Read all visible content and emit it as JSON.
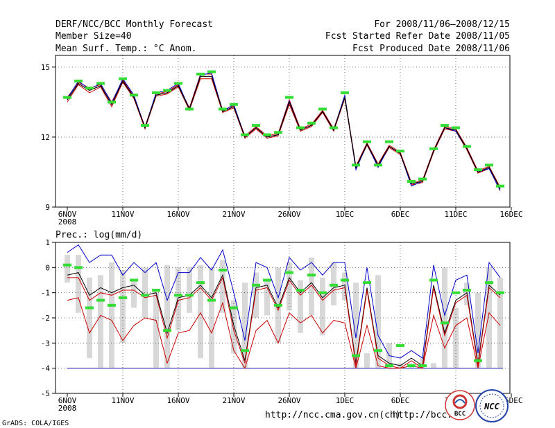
{
  "header": {
    "title_left": "DERF/NCC/BCC Monthly Forecast",
    "member_size": "Member Size=40",
    "variable": "Mean Surf. Temp.: °C Anom.",
    "period": "For 2008/11/06—2008/12/15",
    "started": "Fcst Started Refer Date 2008/11/05",
    "produced": "Fcst Produced Date 2008/11/06"
  },
  "footer": {
    "credit": "GrADS: COLA/IGES",
    "url1": "http://ncc.cma.gov.cn(ch)",
    "url2": "http://bcc.",
    "logo1": "BCC",
    "logo2": "NCC"
  },
  "x_ticks": [
    {
      "day": 0,
      "label": "6NOV",
      "sub": "2008"
    },
    {
      "day": 5,
      "label": "11NOV"
    },
    {
      "day": 10,
      "label": "16NOV"
    },
    {
      "day": 15,
      "label": "21NOV"
    },
    {
      "day": 20,
      "label": "26NOV"
    },
    {
      "day": 25,
      "label": "1DEC"
    },
    {
      "day": 30,
      "label": "6DEC"
    },
    {
      "day": 35,
      "label": "11DEC"
    },
    {
      "day": 40,
      "label": "16DEC"
    }
  ],
  "colors": {
    "mean": "#000000",
    "members": "#cc0000",
    "ensemble": "#0000cc",
    "obs": "#33dd33",
    "spread": "#d8d8d8"
  },
  "chart_data": [
    {
      "type": "line",
      "title": "Mean Surf. Temp.: °C Anom.",
      "xlabel": "",
      "ylabel": "",
      "x_range": [
        0,
        40
      ],
      "ylim": [
        9,
        15.5
      ],
      "y_ticks": [
        9,
        12,
        15
      ],
      "x": [
        0,
        1,
        2,
        3,
        4,
        5,
        6,
        7,
        8,
        9,
        10,
        11,
        12,
        13,
        14,
        15,
        16,
        17,
        18,
        19,
        20,
        21,
        22,
        23,
        24,
        25,
        26,
        27,
        28,
        29,
        30,
        31,
        32,
        33,
        34,
        35,
        36,
        37,
        38,
        39
      ],
      "mean": [
        13.6,
        14.3,
        14.0,
        14.2,
        13.4,
        14.4,
        13.7,
        12.4,
        13.8,
        13.9,
        14.2,
        13.2,
        14.6,
        14.6,
        13.1,
        13.3,
        12.0,
        12.4,
        12.0,
        12.1,
        13.5,
        12.3,
        12.5,
        13.1,
        12.3,
        13.7,
        10.7,
        11.7,
        10.8,
        11.6,
        11.3,
        10.0,
        10.1,
        11.4,
        12.4,
        12.3,
        11.5,
        10.5,
        10.7,
        9.8
      ],
      "series": [
        {
          "name": "upper red",
          "values": [
            13.7,
            14.35,
            14.1,
            14.25,
            13.5,
            14.45,
            13.75,
            12.45,
            13.85,
            13.95,
            14.25,
            13.25,
            14.7,
            14.7,
            13.15,
            13.35,
            12.05,
            12.45,
            12.05,
            12.15,
            13.6,
            12.35,
            12.55,
            13.15,
            12.35,
            13.75,
            10.75,
            11.75,
            10.85,
            11.65,
            11.35,
            10.05,
            10.15,
            11.45,
            12.45,
            12.35,
            11.55,
            10.55,
            10.75,
            9.85
          ]
        },
        {
          "name": "lower red",
          "values": [
            13.5,
            14.25,
            13.9,
            14.15,
            13.3,
            14.35,
            13.65,
            12.35,
            13.75,
            13.85,
            14.15,
            13.15,
            14.5,
            14.5,
            13.05,
            13.25,
            11.95,
            12.35,
            11.95,
            12.05,
            13.4,
            12.25,
            12.45,
            13.05,
            12.25,
            13.65,
            10.65,
            11.65,
            10.75,
            11.55,
            11.25,
            9.95,
            10.05,
            11.35,
            12.35,
            12.25,
            11.45,
            10.45,
            10.65,
            9.75
          ]
        },
        {
          "name": "blue",
          "values": [
            13.65,
            14.4,
            14.05,
            14.3,
            13.45,
            14.5,
            13.8,
            12.4,
            13.9,
            14.0,
            14.3,
            13.2,
            14.65,
            14.75,
            13.1,
            13.4,
            12.0,
            12.4,
            12.0,
            12.1,
            13.55,
            12.3,
            12.5,
            13.1,
            12.3,
            13.8,
            10.6,
            11.7,
            10.7,
            11.6,
            11.3,
            9.9,
            10.1,
            11.4,
            12.4,
            12.25,
            11.5,
            10.5,
            10.65,
            9.7
          ]
        }
      ],
      "obs_markers": [
        13.7,
        14.4,
        14.1,
        14.3,
        13.5,
        14.5,
        13.8,
        12.5,
        13.9,
        14.0,
        14.3,
        13.2,
        14.7,
        14.8,
        13.2,
        13.4,
        12.1,
        12.5,
        12.1,
        12.2,
        13.7,
        12.4,
        12.6,
        13.2,
        12.4,
        13.9,
        10.8,
        11.8,
        10.8,
        11.8,
        11.4,
        10.1,
        10.2,
        11.5,
        12.5,
        12.4,
        11.6,
        10.6,
        10.8,
        9.9
      ]
    },
    {
      "type": "line",
      "title": "Prec.: log(mm/d)",
      "xlabel": "",
      "ylabel": "",
      "x_range": [
        0,
        40
      ],
      "ylim": [
        -5,
        1
      ],
      "y_ticks": [
        -5,
        -4,
        -3,
        -2,
        -1,
        0,
        1
      ],
      "x": [
        0,
        1,
        2,
        3,
        4,
        5,
        6,
        7,
        8,
        9,
        10,
        11,
        12,
        13,
        14,
        15,
        16,
        17,
        18,
        19,
        20,
        21,
        22,
        23,
        24,
        25,
        26,
        27,
        28,
        29,
        30,
        31,
        32,
        33,
        34,
        35,
        36,
        37,
        38,
        39
      ],
      "spread_low": [
        -0.6,
        -1.8,
        -3.6,
        -4.0,
        -4.0,
        -3.0,
        -1.6,
        -2.0,
        -4.0,
        -4.0,
        -2.5,
        -1.8,
        -3.6,
        -4.0,
        -1.8,
        -3.4,
        -4.0,
        -2.0,
        -1.9,
        -3.0,
        -1.7,
        -2.6,
        -1.9,
        -2.7,
        -1.5,
        -1.3,
        -4.0,
        -4.0,
        -4.0,
        -4.0,
        -4.0,
        -4.0,
        -4.0,
        -4.0,
        -4.0,
        -4.0,
        -1.5,
        -4.0,
        -4.0,
        -4.0
      ],
      "spread_high": [
        0.5,
        0.5,
        -0.4,
        -0.3,
        0.2,
        -0.1,
        -0.5,
        0.0,
        -0.9,
        0.1,
        0.0,
        0.0,
        0.1,
        0.0,
        0.3,
        -1.3,
        -0.6,
        -0.2,
        -0.5,
        0.0,
        0.2,
        -0.5,
        0.4,
        -0.4,
        0.2,
        -0.2,
        -0.6,
        -3.4,
        -0.3,
        -3.0,
        -3.8,
        -3.8,
        -3.6,
        -3.8,
        0.0,
        -1.6,
        -0.6,
        -1.0,
        0.0,
        -0.4
      ],
      "mean": [
        -0.3,
        -0.2,
        -1.1,
        -0.8,
        -1.0,
        -0.8,
        -0.7,
        -1.1,
        -1.0,
        -2.6,
        -1.2,
        -1.1,
        -0.7,
        -1.2,
        -0.3,
        -2.3,
        -3.7,
        -0.8,
        -0.7,
        -1.6,
        -0.4,
        -1.0,
        -0.6,
        -1.2,
        -0.8,
        -0.7,
        -3.8,
        -0.8,
        -3.5,
        -3.8,
        -3.9,
        -3.6,
        -3.9,
        -0.7,
        -2.6,
        -1.3,
        -1.0,
        -3.8,
        -0.7,
        -1.1
      ],
      "series": [
        {
          "name": "blue upper",
          "values": [
            0.6,
            0.9,
            0.2,
            0.5,
            0.5,
            -0.3,
            0.2,
            -0.2,
            0.2,
            -1.3,
            -0.2,
            -0.2,
            0.4,
            -0.1,
            0.7,
            -1.0,
            -2.9,
            0.2,
            0.0,
            -1.2,
            0.4,
            -0.1,
            0.2,
            -0.3,
            0.2,
            0.2,
            -2.8,
            0.0,
            -2.7,
            -3.5,
            -3.6,
            -3.3,
            -3.6,
            0.1,
            -1.9,
            -0.5,
            -0.3,
            -3.4,
            0.2,
            -0.4
          ]
        },
        {
          "name": "black mean",
          "values": [
            -0.3,
            -0.2,
            -1.1,
            -0.8,
            -1.0,
            -0.8,
            -0.7,
            -1.1,
            -1.0,
            -2.6,
            -1.2,
            -1.1,
            -0.7,
            -1.2,
            -0.3,
            -2.3,
            -3.7,
            -0.8,
            -0.7,
            -1.6,
            -0.4,
            -1.0,
            -0.6,
            -1.2,
            -0.8,
            -0.7,
            -3.8,
            -0.8,
            -3.5,
            -3.8,
            -3.9,
            -3.6,
            -3.9,
            -0.7,
            -2.6,
            -1.3,
            -1.0,
            -3.8,
            -0.7,
            -1.1
          ]
        },
        {
          "name": "red upper",
          "values": [
            -0.4,
            -0.4,
            -1.3,
            -1.0,
            -1.1,
            -0.9,
            -0.9,
            -1.2,
            -1.1,
            -2.8,
            -1.3,
            -1.2,
            -0.8,
            -1.3,
            -0.4,
            -2.5,
            -3.8,
            -0.9,
            -0.8,
            -1.7,
            -0.5,
            -1.1,
            -0.7,
            -1.3,
            -0.9,
            -0.8,
            -3.9,
            -0.9,
            -3.6,
            -3.9,
            -4.0,
            -3.7,
            -4.0,
            -0.8,
            -2.7,
            -1.4,
            -1.1,
            -3.9,
            -0.8,
            -1.2
          ]
        },
        {
          "name": "red lower",
          "values": [
            -1.3,
            -1.2,
            -2.6,
            -1.9,
            -2.1,
            -2.9,
            -2.3,
            -2.0,
            -2.1,
            -3.8,
            -2.6,
            -2.5,
            -1.8,
            -2.6,
            -1.4,
            -3.3,
            -4.0,
            -2.5,
            -2.1,
            -3.0,
            -1.8,
            -2.2,
            -1.9,
            -2.6,
            -2.1,
            -2.2,
            -4.0,
            -2.3,
            -3.9,
            -4.0,
            -4.0,
            -3.9,
            -4.0,
            -1.9,
            -3.2,
            -2.3,
            -2.0,
            -4.0,
            -1.8,
            -2.3
          ]
        }
      ],
      "floor": -4.0,
      "obs_markers": [
        0.1,
        0.0,
        -1.6,
        -1.3,
        -1.5,
        -1.2,
        -0.5,
        -1.1,
        -0.9,
        -2.5,
        -1.1,
        -1.1,
        -0.6,
        -1.3,
        -0.1,
        -1.6,
        -3.3,
        -0.7,
        -0.5,
        -1.5,
        -0.2,
        -0.9,
        -0.3,
        -1.0,
        -0.7,
        -0.5,
        -3.5,
        -0.6,
        -3.3,
        -3.9,
        -3.1,
        -3.9,
        -3.9,
        -0.5,
        -2.2,
        -1.0,
        -0.9,
        -3.7,
        -0.6,
        -1.0
      ]
    }
  ]
}
